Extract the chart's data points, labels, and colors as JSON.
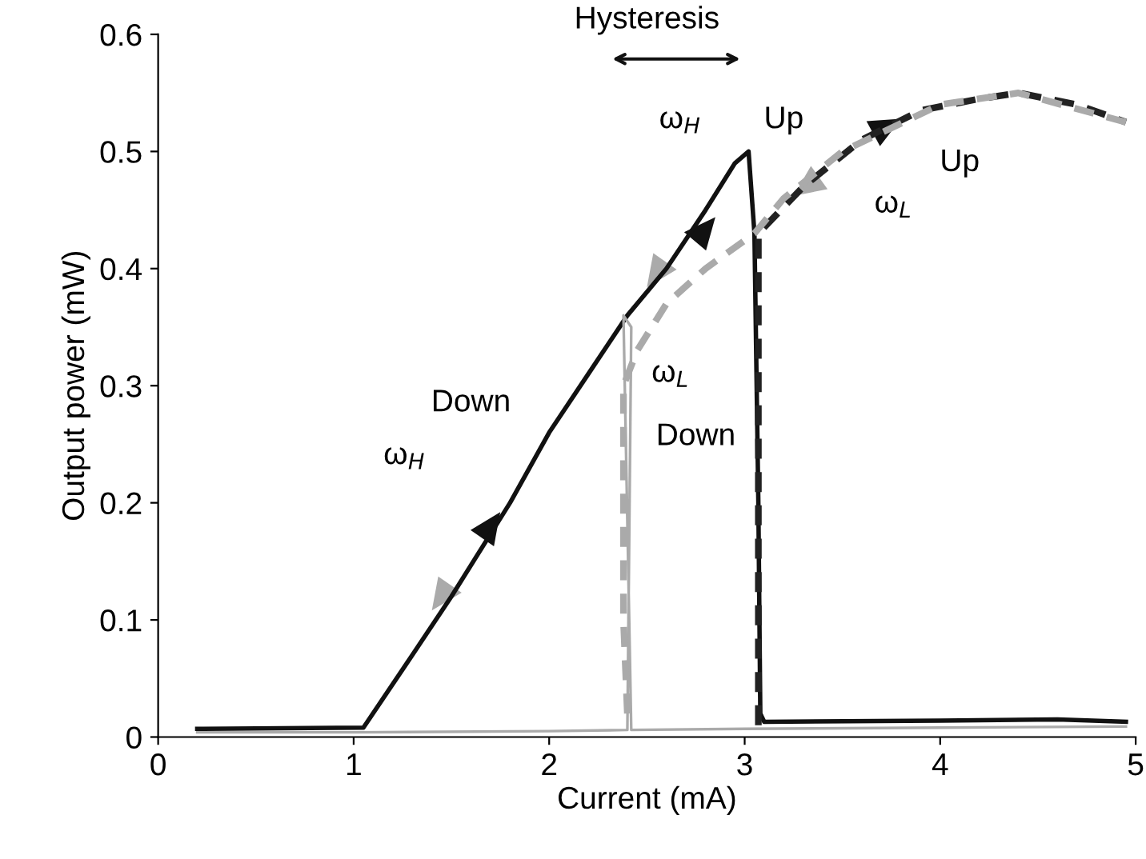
{
  "chart_data": {
    "type": "line",
    "xlabel": "Current (mA)",
    "ylabel": "Output power (mW)",
    "xlim": [
      0,
      5
    ],
    "ylim": [
      0,
      0.6
    ],
    "xticks": [
      0,
      1,
      2,
      3,
      4,
      5
    ],
    "yticks": [
      0,
      0.1,
      0.2,
      0.3,
      0.4,
      0.5,
      0.6
    ],
    "grid": false,
    "legend": false,
    "series": [
      {
        "color": "#111111",
        "line_style": "solid",
        "x": [
          0.2,
          1.05,
          1.3,
          1.5,
          1.8,
          2.0,
          2.2,
          2.4,
          2.6,
          2.8,
          2.95,
          3.02,
          3.05,
          3.07,
          3.08,
          3.1,
          4.0,
          4.6,
          4.95
        ],
        "values": [
          0.007,
          0.008,
          0.07,
          0.12,
          0.2,
          0.26,
          0.31,
          0.36,
          0.4,
          0.45,
          0.49,
          0.5,
          0.43,
          0.2,
          0.02,
          0.013,
          0.014,
          0.015,
          0.013
        ]
      },
      {
        "color": "#222222",
        "line_style": "dashed",
        "x": [
          3.07,
          3.07,
          3.3,
          3.6,
          3.9,
          4.2,
          4.4,
          4.7,
          4.95
        ],
        "values": [
          0.01,
          0.43,
          0.47,
          0.51,
          0.535,
          0.545,
          0.55,
          0.54,
          0.525
        ]
      },
      {
        "color": "#aaaaaa",
        "line_style": "solid",
        "x": [
          0.2,
          1.0,
          2.0,
          2.4,
          2.42,
          2.38,
          2.42,
          3.0,
          4.0,
          4.95
        ],
        "values": [
          0.004,
          0.004,
          0.005,
          0.006,
          0.35,
          0.36,
          0.006,
          0.007,
          0.008,
          0.009
        ]
      },
      {
        "color": "#aaaaaa",
        "line_style": "dashed",
        "x": [
          4.95,
          4.4,
          4.0,
          3.5,
          3.2,
          3.05,
          2.8,
          2.6,
          2.45,
          2.38,
          2.38,
          2.4
        ],
        "values": [
          0.525,
          0.55,
          0.54,
          0.5,
          0.46,
          0.43,
          0.4,
          0.37,
          0.33,
          0.3,
          0.1,
          0.02
        ]
      }
    ],
    "annotations": [
      "Hysteresis",
      "ω$_{H}$",
      "Up",
      "Up",
      "ω$_{L}$",
      "ω$_{L}$",
      "Down",
      "Down",
      "ω$_{H}$"
    ]
  }
}
